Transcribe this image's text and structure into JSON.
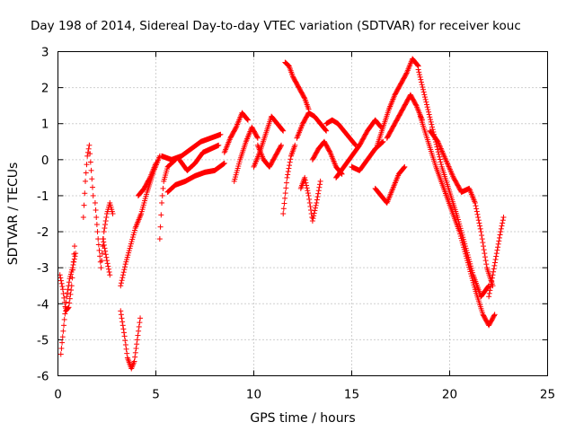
{
  "chart_data": {
    "type": "scatter",
    "title": "Day 198 of 2014, Sidereal Day-to-day VTEC variation (SDTVAR) for receiver kouc",
    "xlabel": "GPS time / hours",
    "ylabel": "SDTVAR / TECUs",
    "xlim": [
      0,
      25
    ],
    "ylim": [
      -6,
      3
    ],
    "xticks": [
      "0",
      "5",
      "10",
      "15",
      "20",
      "25"
    ],
    "yticks": [
      "3",
      "2",
      "1",
      "0",
      "-1",
      "-2",
      "-3",
      "-4",
      "-5",
      "-6"
    ],
    "grid": true,
    "marker_color": "#ff0000",
    "marker": "plus",
    "tracks": [
      [
        [
          0.15,
          -5.4
        ],
        [
          0.3,
          -4.6
        ],
        [
          0.45,
          -3.8
        ],
        [
          0.6,
          -3.3
        ],
        [
          0.75,
          -3.0
        ],
        [
          0.9,
          -2.6
        ]
      ],
      [
        [
          0.1,
          -3.2
        ],
        [
          0.25,
          -3.6
        ],
        [
          0.4,
          -4.2
        ],
        [
          0.55,
          -4.1
        ],
        [
          0.7,
          -3.5
        ],
        [
          0.85,
          -2.4
        ]
      ],
      [
        [
          1.3,
          -1.6
        ],
        [
          1.4,
          -0.6
        ],
        [
          1.5,
          0.1
        ],
        [
          1.6,
          0.4
        ],
        [
          1.7,
          -0.3
        ],
        [
          1.8,
          -1.0
        ]
      ],
      [
        [
          1.9,
          -1.2
        ],
        [
          2.05,
          -2.2
        ],
        [
          2.2,
          -3.0
        ],
        [
          2.35,
          -2.0
        ],
        [
          2.5,
          -1.5
        ],
        [
          2.65,
          -1.2
        ],
        [
          2.8,
          -1.5
        ]
      ],
      [
        [
          2.3,
          -2.2
        ],
        [
          2.5,
          -2.8
        ],
        [
          2.65,
          -3.2
        ]
      ],
      [
        [
          3.2,
          -4.2
        ],
        [
          3.4,
          -4.9
        ],
        [
          3.55,
          -5.5
        ],
        [
          3.75,
          -5.8
        ],
        [
          3.9,
          -5.6
        ],
        [
          4.05,
          -5.0
        ],
        [
          4.2,
          -4.4
        ]
      ],
      [
        [
          3.2,
          -3.5
        ],
        [
          3.45,
          -2.9
        ],
        [
          3.7,
          -2.4
        ],
        [
          3.95,
          -1.9
        ],
        [
          4.25,
          -1.5
        ],
        [
          4.55,
          -0.9
        ],
        [
          4.9,
          -0.3
        ],
        [
          5.2,
          0.1
        ]
      ],
      [
        [
          4.1,
          -1.0
        ],
        [
          4.4,
          -0.8
        ],
        [
          4.7,
          -0.5
        ],
        [
          5.0,
          -0.1
        ]
      ],
      [
        [
          5.2,
          -2.2
        ],
        [
          5.3,
          -1.2
        ],
        [
          5.4,
          -0.6
        ],
        [
          5.6,
          -0.2
        ],
        [
          6.0,
          0.0
        ]
      ],
      [
        [
          5.3,
          0.1
        ],
        [
          5.8,
          0.0
        ],
        [
          6.3,
          0.1
        ],
        [
          6.8,
          0.3
        ],
        [
          7.3,
          0.5
        ],
        [
          7.8,
          0.6
        ],
        [
          8.3,
          0.7
        ]
      ],
      [
        [
          5.6,
          -0.9
        ],
        [
          6.0,
          -0.7
        ],
        [
          6.5,
          -0.6
        ],
        [
          7.0,
          -0.45
        ],
        [
          7.5,
          -0.35
        ],
        [
          8.0,
          -0.3
        ],
        [
          8.5,
          -0.1
        ]
      ],
      [
        [
          6.2,
          0.0
        ],
        [
          6.6,
          -0.3
        ],
        [
          7.0,
          -0.1
        ],
        [
          7.4,
          0.2
        ],
        [
          7.8,
          0.3
        ],
        [
          8.2,
          0.4
        ]
      ],
      [
        [
          8.5,
          0.2
        ],
        [
          8.8,
          0.6
        ],
        [
          9.1,
          0.9
        ],
        [
          9.4,
          1.3
        ],
        [
          9.7,
          1.1
        ]
      ],
      [
        [
          9.0,
          -0.6
        ],
        [
          9.3,
          0.0
        ],
        [
          9.6,
          0.5
        ],
        [
          9.9,
          0.9
        ],
        [
          10.2,
          0.6
        ]
      ],
      [
        [
          10.0,
          -0.2
        ],
        [
          10.3,
          0.2
        ],
        [
          10.6,
          0.7
        ],
        [
          10.9,
          1.2
        ],
        [
          11.2,
          1.0
        ],
        [
          11.5,
          0.8
        ]
      ],
      [
        [
          10.2,
          0.4
        ],
        [
          10.5,
          0.0
        ],
        [
          10.8,
          -0.2
        ],
        [
          11.1,
          0.1
        ],
        [
          11.4,
          0.4
        ]
      ],
      [
        [
          11.5,
          -1.5
        ],
        [
          11.7,
          -0.5
        ],
        [
          11.9,
          0.1
        ],
        [
          12.1,
          0.4
        ]
      ],
      [
        [
          11.6,
          2.7
        ],
        [
          11.8,
          2.6
        ],
        [
          12.0,
          2.3
        ],
        [
          12.3,
          2.0
        ],
        [
          12.6,
          1.7
        ],
        [
          12.8,
          1.4
        ]
      ],
      [
        [
          12.4,
          -0.8
        ],
        [
          12.6,
          -0.5
        ],
        [
          12.8,
          -1.0
        ],
        [
          13.0,
          -1.7
        ],
        [
          13.2,
          -1.2
        ],
        [
          13.4,
          -0.6
        ]
      ],
      [
        [
          12.2,
          0.6
        ],
        [
          12.5,
          1.0
        ],
        [
          12.8,
          1.3
        ],
        [
          13.1,
          1.2
        ],
        [
          13.4,
          1.0
        ],
        [
          13.7,
          0.8
        ]
      ],
      [
        [
          13.0,
          0.0
        ],
        [
          13.3,
          0.3
        ],
        [
          13.6,
          0.5
        ],
        [
          13.9,
          0.2
        ],
        [
          14.2,
          -0.2
        ],
        [
          14.5,
          -0.4
        ]
      ],
      [
        [
          13.7,
          1.0
        ],
        [
          14.0,
          1.1
        ],
        [
          14.3,
          1.0
        ],
        [
          14.6,
          0.8
        ],
        [
          14.9,
          0.6
        ],
        [
          15.2,
          0.4
        ]
      ],
      [
        [
          14.2,
          -0.5
        ],
        [
          14.6,
          -0.2
        ],
        [
          15.0,
          0.1
        ],
        [
          15.4,
          0.4
        ],
        [
          15.8,
          0.8
        ],
        [
          16.2,
          1.1
        ],
        [
          16.5,
          0.9
        ]
      ],
      [
        [
          15.0,
          -0.2
        ],
        [
          15.4,
          -0.3
        ],
        [
          15.8,
          0.0
        ],
        [
          16.2,
          0.3
        ],
        [
          16.6,
          0.5
        ]
      ],
      [
        [
          16.2,
          -0.8
        ],
        [
          16.5,
          -1.0
        ],
        [
          16.8,
          -1.2
        ],
        [
          17.1,
          -0.8
        ],
        [
          17.4,
          -0.4
        ],
        [
          17.7,
          -0.2
        ]
      ],
      [
        [
          16.3,
          0.4
        ],
        [
          16.6,
          0.9
        ],
        [
          16.9,
          1.4
        ],
        [
          17.2,
          1.8
        ],
        [
          17.5,
          2.1
        ],
        [
          17.8,
          2.4
        ],
        [
          18.1,
          2.8
        ],
        [
          18.4,
          2.6
        ]
      ],
      [
        [
          16.8,
          0.6
        ],
        [
          17.1,
          0.9
        ],
        [
          17.4,
          1.2
        ],
        [
          17.7,
          1.5
        ],
        [
          18.0,
          1.8
        ],
        [
          18.3,
          1.5
        ],
        [
          18.6,
          1.1
        ]
      ],
      [
        [
          18.4,
          2.5
        ],
        [
          18.8,
          1.6
        ],
        [
          19.2,
          0.7
        ],
        [
          19.6,
          -0.2
        ],
        [
          20.0,
          -0.9
        ],
        [
          20.4,
          -1.6
        ],
        [
          20.8,
          -2.4
        ],
        [
          21.2,
          -3.2
        ],
        [
          21.6,
          -3.8
        ],
        [
          22.0,
          -3.5
        ]
      ],
      [
        [
          18.5,
          1.2
        ],
        [
          18.9,
          0.5
        ],
        [
          19.3,
          -0.2
        ],
        [
          19.7,
          -0.8
        ],
        [
          20.1,
          -1.4
        ],
        [
          20.5,
          -2.0
        ],
        [
          20.9,
          -2.8
        ],
        [
          21.3,
          -3.6
        ],
        [
          21.7,
          -4.3
        ],
        [
          22.0,
          -4.6
        ],
        [
          22.3,
          -4.3
        ]
      ],
      [
        [
          19.0,
          0.8
        ],
        [
          19.4,
          0.5
        ],
        [
          19.8,
          0.0
        ],
        [
          20.2,
          -0.5
        ],
        [
          20.6,
          -0.9
        ],
        [
          21.0,
          -0.8
        ],
        [
          21.3,
          -1.2
        ],
        [
          21.6,
          -2.0
        ],
        [
          21.9,
          -3.0
        ],
        [
          22.2,
          -3.5
        ]
      ],
      [
        [
          22.0,
          -3.8
        ],
        [
          22.2,
          -3.2
        ],
        [
          22.4,
          -2.6
        ],
        [
          22.6,
          -2.0
        ],
        [
          22.75,
          -1.6
        ]
      ]
    ]
  }
}
